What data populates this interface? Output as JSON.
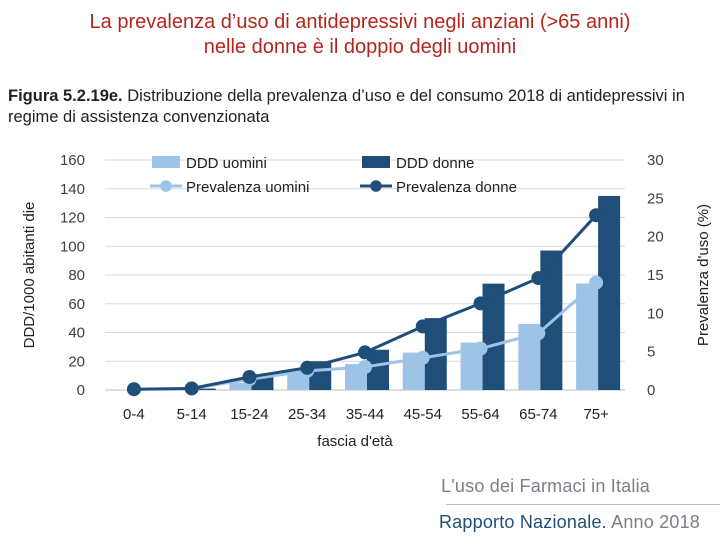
{
  "slide_title": {
    "line1": "La prevalenza d’uso di antidepressivi negli anziani (>65 anni)",
    "line2": "nelle donne è il doppio degli uomini"
  },
  "figure_caption": {
    "label": "Figura 5.2.19e.",
    "text": "Distribuzione della prevalenza d’uso e del consumo 2018 di antidepressivi in regime di assistenza convenzionata"
  },
  "footer": {
    "line1": "L'uso dei Farmaci in Italia",
    "line2_main": "Rapporto Nazionale.",
    "line2_year": "Anno 2018"
  },
  "colors": {
    "ddd_men": "#9dc3e6",
    "ddd_women": "#1f4e79",
    "prev_men": "#9dc3e6",
    "prev_women": "#1f4e79",
    "grid": "#d9d9d9",
    "text": "#404040"
  },
  "chart_data": {
    "type": "bar",
    "xlabel": "fascia d'età",
    "ylabel": "DDD/1000 abitanti die",
    "y2label": "Prevalenza d'uso (%)",
    "categories": [
      "0-4",
      "5-14",
      "15-24",
      "25-34",
      "35-44",
      "45-54",
      "55-64",
      "65-74",
      "75+"
    ],
    "ylim": [
      0,
      160
    ],
    "y2lim": [
      0,
      30
    ],
    "yticks": [
      0,
      20,
      40,
      60,
      80,
      100,
      120,
      140,
      160
    ],
    "y2ticks": [
      0,
      5,
      10,
      15,
      20,
      25,
      30
    ],
    "series": [
      {
        "name": "DDD uomini",
        "kind": "bar",
        "axis": "left",
        "values": [
          0,
          0.5,
          5,
          12,
          18,
          26,
          33,
          46,
          74
        ]
      },
      {
        "name": "DDD donne",
        "kind": "bar",
        "axis": "left",
        "values": [
          0,
          1,
          9,
          20,
          28,
          50,
          74,
          97,
          135
        ]
      },
      {
        "name": "Prevalenza uomini",
        "kind": "line",
        "axis": "right",
        "values": [
          0.1,
          0.2,
          1.4,
          2.5,
          3.0,
          4.2,
          5.4,
          7.4,
          14.0
        ]
      },
      {
        "name": "Prevalenza donne",
        "kind": "line",
        "axis": "right",
        "values": [
          0.1,
          0.2,
          1.7,
          2.9,
          4.9,
          8.3,
          11.3,
          14.6,
          22.8
        ]
      }
    ],
    "legend_position": "top"
  }
}
